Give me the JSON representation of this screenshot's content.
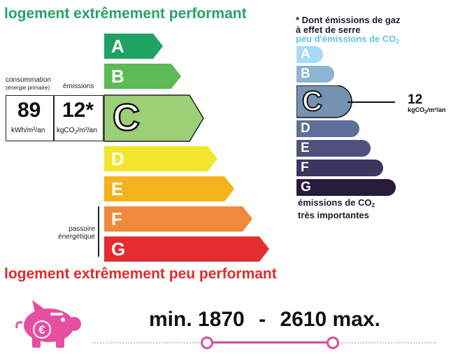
{
  "dpe": {
    "title_top": "logement extrêmement performant",
    "title_bottom": "logement extrêmement peu performant",
    "consumption_label_line1": "consommation",
    "consumption_label_line2": "(énergie primaire)",
    "emissions_label": "émissions",
    "consumption_value": "89",
    "consumption_unit": "kWh/m²/an",
    "emissions_value": "12*",
    "emissions_unit_pre": "kgCO",
    "emissions_unit_sub": "2",
    "emissions_unit_post": "/m²/an",
    "passoire_line1": "passoire",
    "passoire_line2": "énergétique",
    "current_class": "C",
    "classes": [
      {
        "letter": "A",
        "color": "#1fa363"
      },
      {
        "letter": "B",
        "color": "#5cbb56"
      },
      {
        "letter": "C",
        "color": "#9ccf76"
      },
      {
        "letter": "D",
        "color": "#f1e62d"
      },
      {
        "letter": "E",
        "color": "#f3b21e"
      },
      {
        "letter": "F",
        "color": "#ef8a3c"
      },
      {
        "letter": "G",
        "color": "#e32d31"
      }
    ]
  },
  "ges": {
    "note_line1": "* Dont émissions de gaz",
    "note_line2": "à effet de serre",
    "low_label_pre": "peu d'émissions de CO",
    "low_label_sub": "2",
    "high_label_line1_pre": "émissions de CO",
    "high_label_line1_sub": "2",
    "high_label_line2": "très importantes",
    "value": "12",
    "unit_pre": "kgCO",
    "unit_sub": "2",
    "unit_post": "/m²/an",
    "current_class": "C",
    "classes": [
      {
        "letter": "A",
        "color": "#a4dbf8"
      },
      {
        "letter": "B",
        "color": "#8cb4d3"
      },
      {
        "letter": "C",
        "color": "#7592b3"
      },
      {
        "letter": "D",
        "color": "#5e6e9a"
      },
      {
        "letter": "E",
        "color": "#4d517c"
      },
      {
        "letter": "F",
        "color": "#3b3760"
      },
      {
        "letter": "G",
        "color": "#281a3b"
      }
    ]
  },
  "cost": {
    "min_label": "min. 1870",
    "dash": "-",
    "max_label": "2610 max.",
    "currency_symbol": "€"
  },
  "colors": {
    "piggy": "#e64fa0",
    "range_line": "#d94b9a"
  }
}
